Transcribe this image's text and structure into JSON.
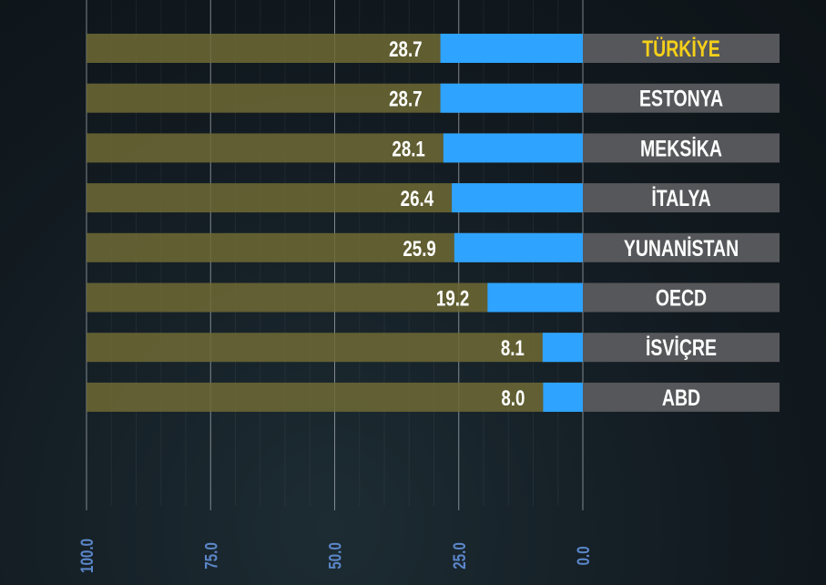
{
  "chart_data": {
    "type": "bar",
    "orientation": "horizontal",
    "categories": [
      "TÜRKİYE",
      "ESTONYA",
      "MEKSİKA",
      "İTALYA",
      "YUNANİSTAN",
      "OECD",
      "İSVİÇRE",
      "ABD"
    ],
    "values": [
      28.7,
      28.7,
      28.1,
      26.4,
      25.9,
      19.2,
      8.1,
      8.0
    ],
    "value_labels": [
      "28.7",
      "28.7",
      "28.1",
      "26.4",
      "25.9",
      "19.2",
      "8.1",
      "8.0"
    ],
    "highlight": "TÜRKİYE",
    "xlim": [
      100,
      0
    ],
    "x_reversed": true,
    "x_ticks": [
      "100.0",
      "75.0",
      "50.0",
      "25.0",
      "0.0"
    ],
    "x_tick_values": [
      100,
      75,
      50,
      25,
      0
    ],
    "grid": true,
    "title": "",
    "xlabel": "",
    "ylabel": "",
    "colors": {
      "bar": "#2ea3ff",
      "track": "#6e6a35",
      "label_box": "#56575a",
      "label_text": "#ffffff",
      "highlight_text": "#f5d01a",
      "tick_text": "#5b86c9"
    }
  }
}
